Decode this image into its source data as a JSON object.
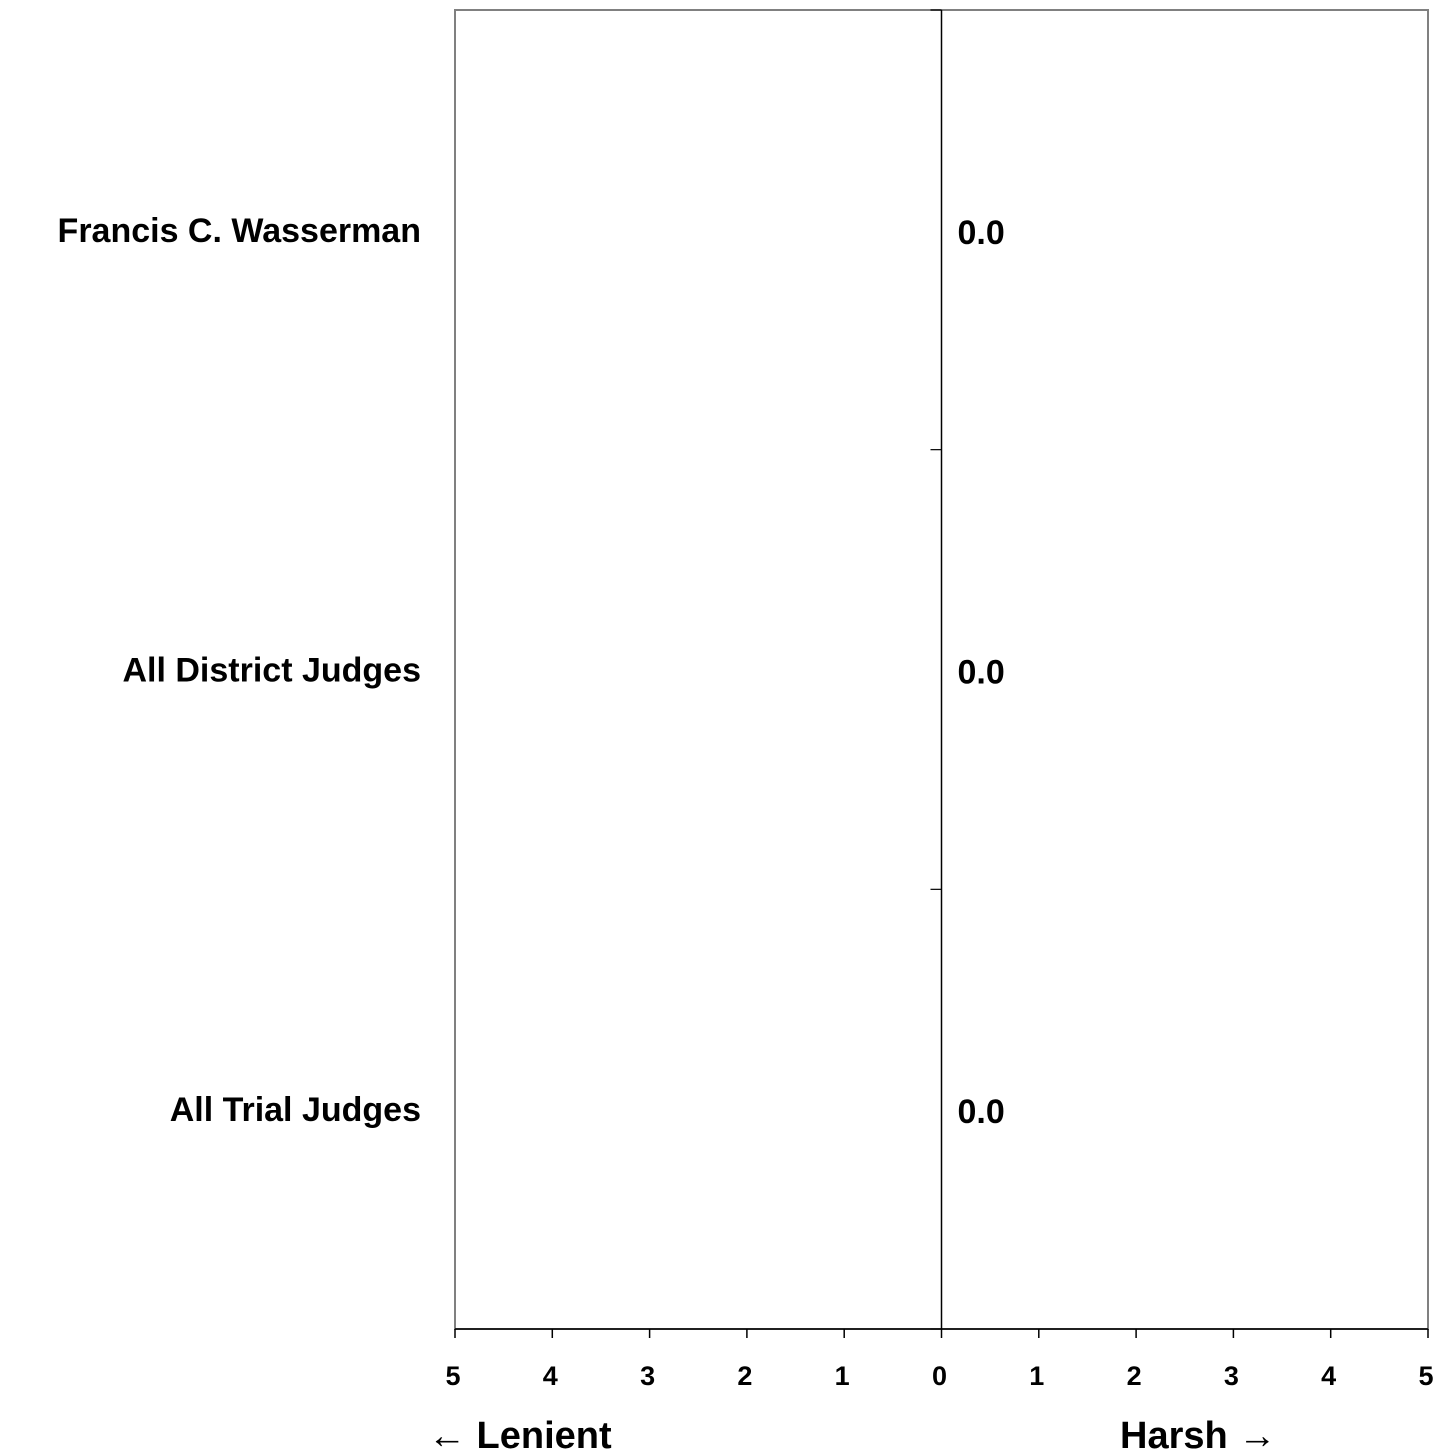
{
  "chart_data": {
    "type": "bar",
    "orientation": "horizontal",
    "categories": [
      "Francis C. Wasserman",
      "All District Judges",
      "All Trial Judges"
    ],
    "values": [
      0.0,
      0.0,
      0.0
    ],
    "value_labels": [
      "0.0",
      "0.0",
      "0.0"
    ],
    "xlim": [
      -5,
      5
    ],
    "x_ticks": [
      -5,
      -4,
      -3,
      -2,
      -1,
      0,
      1,
      2,
      3,
      4,
      5
    ],
    "x_tick_labels": [
      "5",
      "4",
      "3",
      "2",
      "1",
      "0",
      "1",
      "2",
      "3",
      "4",
      "5"
    ],
    "xlabel_left": "← Lenient",
    "xlabel_right": "Harsh →",
    "grid": false,
    "legend": "none",
    "colors": {
      "frame": "#808080",
      "axis": "#000000",
      "bar": "#000000"
    }
  }
}
